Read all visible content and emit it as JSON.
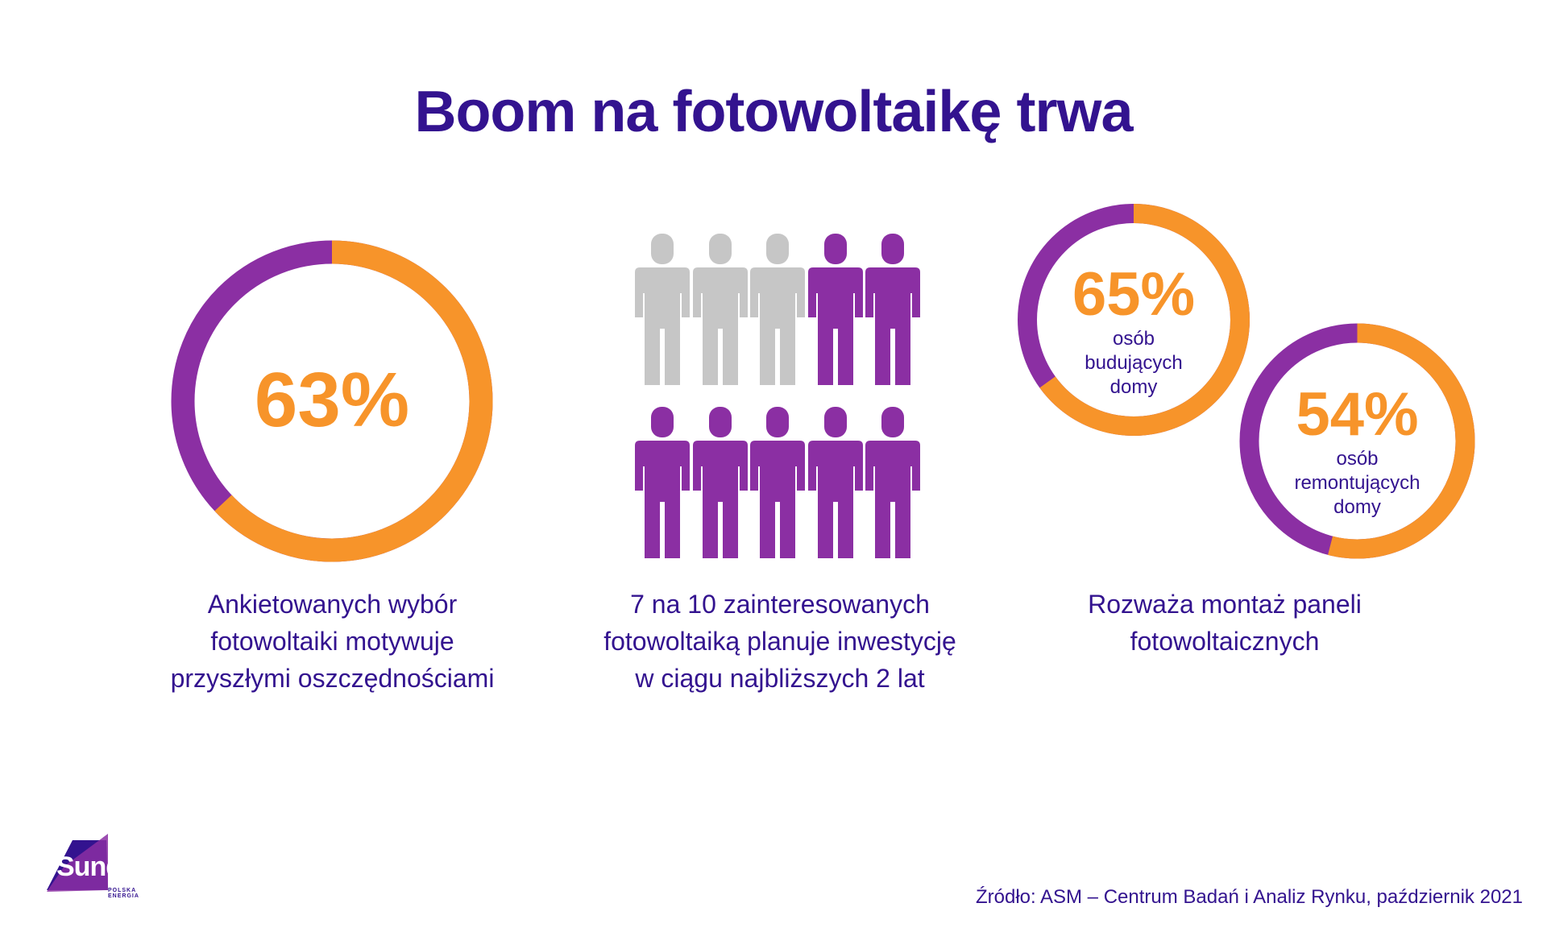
{
  "title": "Boom na fotowoltaikę trwa",
  "colors": {
    "orange": "#f7942a",
    "purple": "#8b2fa3",
    "grey": "#c6c6c6",
    "navy": "#33138f"
  },
  "chart_data": [
    {
      "type": "pie",
      "label": "63%",
      "values": [
        63,
        37
      ],
      "caption": [
        "Ankietowanych wybór",
        "fotowoltaiki motywuje",
        "przyszłymi oszczędnościami"
      ]
    },
    {
      "type": "pictogram",
      "count_highlighted": 7,
      "count_total": 10,
      "caption": [
        "7 na 10 zainteresowanych",
        "fotowoltaiką planuje inwestycję",
        "w ciągu najbliższych 2 lat"
      ]
    },
    {
      "type": "pie",
      "label": "65%",
      "values": [
        65,
        35
      ],
      "sublabel": [
        "osób",
        "budujących",
        "domy"
      ]
    },
    {
      "type": "pie",
      "label": "54%",
      "values": [
        54,
        46
      ],
      "sublabel": [
        "osób",
        "remontujących",
        "domy"
      ]
    }
  ],
  "right_caption": [
    "Rozważa montaż paneli",
    "fotowoltaicznych"
  ],
  "source": "Źródło: ASM – Centrum Badań i Analiz Rynku, październik 2021",
  "logo": {
    "brand": "Sunday",
    "tagline": "POLSKA ENERGIA"
  }
}
